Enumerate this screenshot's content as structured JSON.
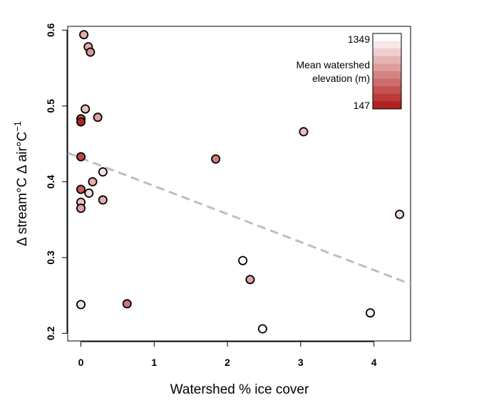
{
  "chart_data": {
    "type": "scatter",
    "xlabel": "Watershed % ice cover",
    "ylabel_parts": [
      "Δ stream°C Δ air°C",
      "−1"
    ],
    "xlim": [
      -0.18,
      4.5
    ],
    "ylim": [
      0.19,
      0.605
    ],
    "xticks": [
      0,
      1,
      2,
      3,
      4
    ],
    "yticks": [
      0.2,
      0.3,
      0.4,
      0.5,
      0.6
    ],
    "xtick_labels": [
      "0",
      "1",
      "2",
      "3",
      "4"
    ],
    "ytick_labels": [
      "0.2",
      "0.3",
      "0.4",
      "0.5",
      "0.6"
    ],
    "grid": false,
    "trend_line": {
      "style": "dashed",
      "color": "#bebebe",
      "x": [
        -0.18,
        4.5
      ],
      "y": [
        0.438,
        0.265
      ]
    },
    "color_scale": {
      "title_lines": [
        "Mean watershed",
        "elevation (m)"
      ],
      "max_label": "1349",
      "min_label": "147",
      "max_value": 1349,
      "min_value": 147,
      "high_color": "#ffffff",
      "low_color": "#b22222",
      "steps": 10,
      "placement": "top-right"
    },
    "points": [
      {
        "x": 0.04,
        "y": 0.594,
        "elev": 900
      },
      {
        "x": 0.1,
        "y": 0.578,
        "elev": 900
      },
      {
        "x": 0.13,
        "y": 0.571,
        "elev": 780
      },
      {
        "x": 0.06,
        "y": 0.496,
        "elev": 1000
      },
      {
        "x": 0.23,
        "y": 0.485,
        "elev": 850
      },
      {
        "x": 0.0,
        "y": 0.483,
        "elev": 500
      },
      {
        "x": 0.0,
        "y": 0.479,
        "elev": 147
      },
      {
        "x": 0.0,
        "y": 0.433,
        "elev": 350
      },
      {
        "x": 0.3,
        "y": 0.413,
        "elev": 1180
      },
      {
        "x": 0.16,
        "y": 0.4,
        "elev": 900
      },
      {
        "x": 0.0,
        "y": 0.39,
        "elev": 450
      },
      {
        "x": 0.11,
        "y": 0.385,
        "elev": 1150
      },
      {
        "x": 0.3,
        "y": 0.376,
        "elev": 900
      },
      {
        "x": 0.0,
        "y": 0.373,
        "elev": 1000
      },
      {
        "x": 0.0,
        "y": 0.365,
        "elev": 850
      },
      {
        "x": 0.0,
        "y": 0.238,
        "elev": 1180
      },
      {
        "x": 0.63,
        "y": 0.239,
        "elev": 600
      },
      {
        "x": 1.84,
        "y": 0.43,
        "elev": 650
      },
      {
        "x": 2.21,
        "y": 0.296,
        "elev": 1349
      },
      {
        "x": 2.31,
        "y": 0.271,
        "elev": 850
      },
      {
        "x": 2.48,
        "y": 0.206,
        "elev": 1349
      },
      {
        "x": 3.04,
        "y": 0.466,
        "elev": 1000
      },
      {
        "x": 3.95,
        "y": 0.227,
        "elev": 1250
      },
      {
        "x": 4.35,
        "y": 0.357,
        "elev": 1150
      }
    ]
  }
}
